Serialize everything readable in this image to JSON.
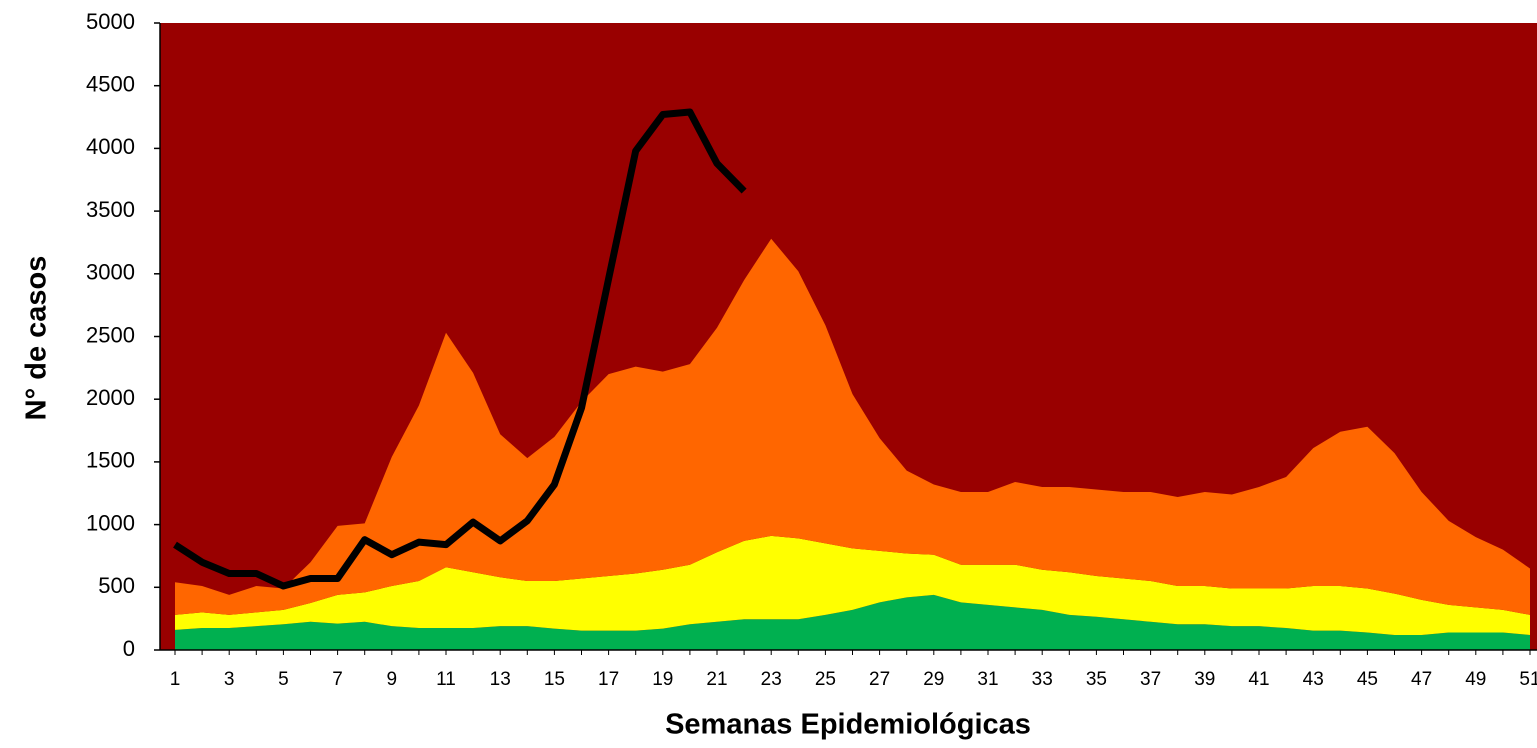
{
  "chart_data": {
    "type": "stacked_area_line",
    "x_label": "Semanas Epidemiológicas",
    "y_label": "N° de casos",
    "categories": [
      1,
      null,
      3,
      null,
      5,
      null,
      7,
      null,
      9,
      null,
      11,
      null,
      13,
      null,
      15,
      null,
      17,
      null,
      19,
      null,
      21,
      null,
      23,
      null,
      25,
      null,
      27,
      null,
      29,
      null,
      31,
      null,
      33,
      null,
      35,
      null,
      37,
      null,
      39,
      null,
      41,
      null,
      43,
      null,
      45,
      null,
      47,
      null,
      49,
      null,
      51
    ],
    "ylim": [
      0,
      5000
    ],
    "yticks": [
      0,
      500,
      1000,
      1500,
      2000,
      2500,
      3000,
      3500,
      4000,
      4500,
      5000
    ],
    "plot_background": "#990000",
    "series": [
      {
        "color": "#00b050",
        "kind": "area",
        "values": [
          160,
          175,
          175,
          190,
          205,
          225,
          210,
          225,
          190,
          175,
          175,
          175,
          190,
          190,
          170,
          155,
          155,
          155,
          170,
          205,
          225,
          245,
          245,
          245,
          280,
          320,
          380,
          420,
          440,
          380,
          360,
          340,
          320,
          280,
          265,
          245,
          225,
          205,
          205,
          190,
          190,
          175,
          155,
          155,
          140,
          120,
          120,
          140,
          140,
          140,
          120
        ]
      },
      {
        "color": "#ffff00",
        "kind": "area",
        "values": [
          120,
          125,
          105,
          110,
          115,
          150,
          230,
          235,
          320,
          375,
          485,
          445,
          390,
          360,
          380,
          415,
          435,
          455,
          470,
          475,
          555,
          625,
          665,
          645,
          570,
          490,
          410,
          350,
          320,
          300,
          320,
          340,
          320,
          340,
          325,
          325,
          325,
          305,
          305,
          300,
          300,
          315,
          355,
          355,
          350,
          330,
          280,
          220,
          200,
          180,
          160
        ]
      },
      {
        "color": "#ff6600",
        "kind": "area",
        "values": [
          260,
          210,
          160,
          210,
          170,
          325,
          550,
          550,
          1030,
          1400,
          1870,
          1590,
          1140,
          980,
          1150,
          1410,
          1610,
          1650,
          1580,
          1600,
          1790,
          2080,
          2370,
          2130,
          1740,
          1230,
          900,
          660,
          560,
          580,
          580,
          660,
          660,
          680,
          690,
          690,
          710,
          710,
          750,
          750,
          810,
          890,
          1100,
          1230,
          1290,
          1120,
          860,
          670,
          560,
          480,
          370
        ]
      },
      {
        "color": "#000000",
        "kind": "line",
        "values": [
          840,
          700,
          610,
          610,
          510,
          570,
          570,
          880,
          760,
          860,
          840,
          1020,
          870,
          1030,
          1320,
          1930,
          2960,
          3980,
          4270,
          4290,
          3880,
          3660,
          null,
          null,
          null,
          null,
          null,
          null,
          null,
          null,
          null,
          null,
          null,
          null,
          null,
          null,
          null,
          null,
          null,
          null,
          null,
          null,
          null,
          null,
          null,
          null,
          null,
          null,
          null,
          null,
          null
        ]
      }
    ]
  }
}
